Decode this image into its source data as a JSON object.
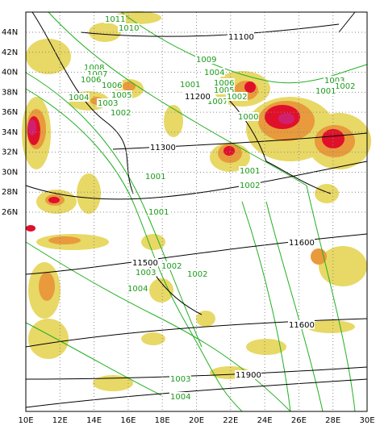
{
  "lat_labels": [
    "44N",
    "42N",
    "40N",
    "38N",
    "36N",
    "34N",
    "32N",
    "30N",
    "28N",
    "26N"
  ],
  "lon_labels": [
    "10E",
    "12E",
    "14E",
    "16E",
    "18E",
    "20E",
    "22E",
    "24E",
    "26E",
    "28E",
    "30E"
  ],
  "contour_labels": [
    "1011",
    "1010",
    "11100",
    "1009",
    "1008",
    "1007",
    "1006",
    "1006",
    "1005",
    "1004",
    "1003",
    "1002",
    "1001",
    "1004",
    "1006",
    "1005",
    "1007",
    "1002",
    "11200",
    "1003",
    "1002",
    "1001",
    "1000",
    "11300",
    "1001",
    "1001",
    "1002",
    "1001",
    "11600",
    "11500",
    "1003",
    "1002",
    "1002",
    "1004",
    "11600",
    "1003",
    "11900",
    "1004"
  ]
}
